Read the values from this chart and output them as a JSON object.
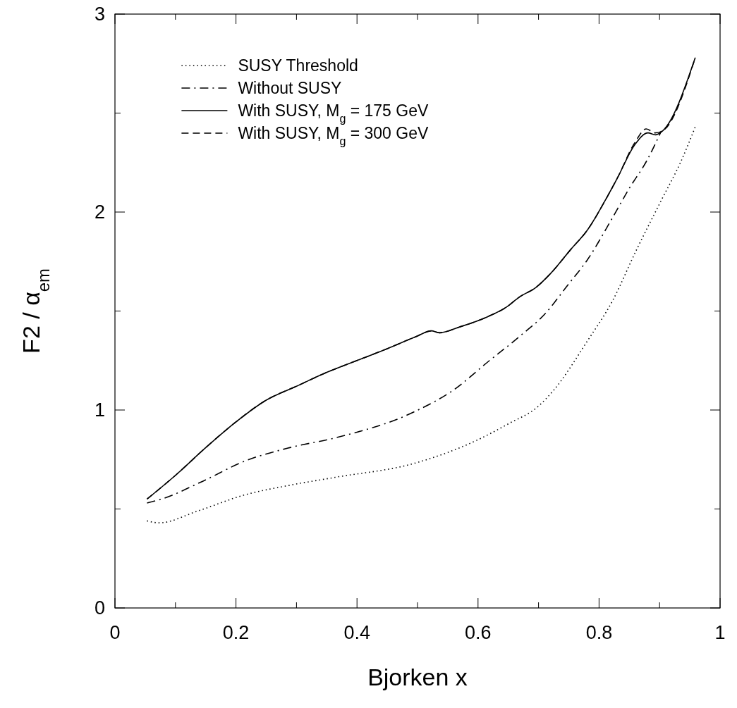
{
  "chart_data": {
    "type": "line",
    "xlabel": "Bjorken x",
    "ylabel": "F2 / α$_{em}$",
    "xlim": [
      0,
      1
    ],
    "ylim": [
      0,
      3
    ],
    "xticks": [
      0,
      {
        "value": 0.1,
        "label": null
      },
      0.2,
      {
        "value": 0.3,
        "label": null
      },
      0.4,
      {
        "value": 0.5,
        "label": null
      },
      0.6,
      {
        "value": 0.7,
        "label": null
      },
      0.8,
      {
        "value": 0.9,
        "label": null
      },
      1
    ],
    "yticks": [
      0,
      {
        "value": 0.5,
        "label": null
      },
      1,
      {
        "value": 1.5,
        "label": null
      },
      2,
      {
        "value": 2.5,
        "label": null
      },
      3
    ],
    "grid": false,
    "legend": "top left",
    "marker": "none",
    "series": [
      {
        "name": "SUSY Threshold",
        "color": "#000000",
        "line_style": "dotted",
        "x": [
          0.053,
          0.073,
          0.137,
          0.213,
          0.289,
          0.364,
          0.494,
          0.6,
          0.65,
          0.7,
          0.725,
          0.781,
          0.822,
          0.862,
          0.903,
          0.936,
          0.959
        ],
        "values": [
          0.44,
          0.43,
          0.49,
          0.57,
          0.62,
          0.66,
          0.73,
          0.85,
          0.93,
          1.02,
          1.1,
          1.35,
          1.55,
          1.81,
          2.06,
          2.26,
          2.43
        ]
      },
      {
        "name": "Without SUSY",
        "color": "#000000",
        "line_style": "dashdot",
        "x": [
          0.053,
          0.077,
          0.145,
          0.213,
          0.289,
          0.365,
          0.494,
          0.559,
          0.619,
          0.668,
          0.712,
          0.748,
          0.781,
          0.822,
          0.85,
          0.879,
          0.903
        ],
        "values": [
          0.53,
          0.55,
          0.64,
          0.74,
          0.81,
          0.86,
          0.99,
          1.1,
          1.25,
          1.37,
          1.49,
          1.63,
          1.76,
          1.97,
          2.12,
          2.26,
          2.41
        ]
      },
      {
        "name": "With SUSY, M$_{g}$ = 175 GeV",
        "color": "#000000",
        "line_style": "solid",
        "x": [
          0.053,
          0.1,
          0.15,
          0.2,
          0.25,
          0.3,
          0.35,
          0.4,
          0.45,
          0.497,
          0.523,
          0.536,
          0.57,
          0.615,
          0.647,
          0.668,
          0.696,
          0.72,
          0.753,
          0.781,
          0.814,
          0.83,
          0.859,
          0.881,
          0.893,
          0.905,
          0.959
        ],
        "values": [
          0.55,
          0.67,
          0.81,
          0.94,
          1.05,
          1.12,
          1.19,
          1.25,
          1.31,
          1.37,
          1.4,
          1.39,
          1.42,
          1.47,
          1.52,
          1.57,
          1.62,
          1.69,
          1.81,
          1.91,
          2.08,
          2.17,
          2.34,
          2.4,
          2.39,
          2.41,
          2.78
        ]
      },
      {
        "name": "With SUSY, M$_{g}$ = 300 GeV",
        "color": "#000000",
        "line_style": "dashed",
        "x": [
          0.053,
          0.1,
          0.15,
          0.2,
          0.25,
          0.3,
          0.35,
          0.4,
          0.45,
          0.497,
          0.523,
          0.536,
          0.57,
          0.615,
          0.647,
          0.668,
          0.696,
          0.72,
          0.753,
          0.781,
          0.814,
          0.83,
          0.859,
          0.878,
          0.893,
          0.905,
          0.959
        ],
        "values": [
          0.55,
          0.67,
          0.81,
          0.94,
          1.05,
          1.12,
          1.19,
          1.25,
          1.31,
          1.37,
          1.4,
          1.39,
          1.42,
          1.47,
          1.52,
          1.57,
          1.62,
          1.69,
          1.81,
          1.91,
          2.08,
          2.17,
          2.35,
          2.42,
          2.4,
          2.41,
          2.78
        ]
      }
    ]
  }
}
